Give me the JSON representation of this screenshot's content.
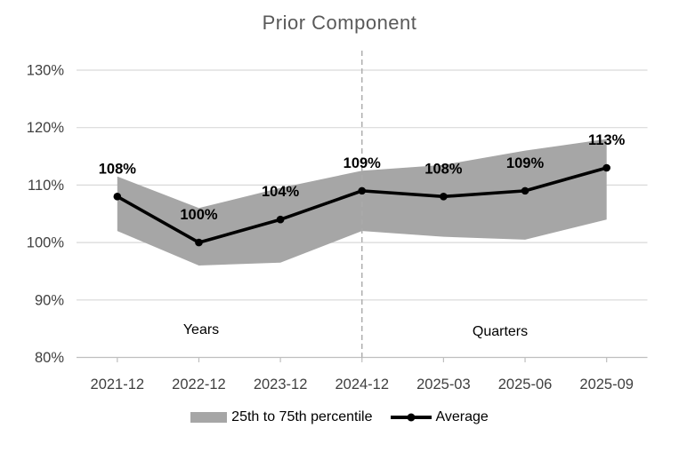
{
  "chart_data": {
    "type": "line",
    "title": "Prior Component",
    "categories": [
      "2021-12",
      "2022-12",
      "2023-12",
      "2024-12",
      "2025-03",
      "2025-06",
      "2025-09"
    ],
    "series": [
      {
        "name": "Average",
        "kind": "line",
        "values": [
          108,
          100,
          104,
          109,
          108,
          109,
          113
        ],
        "labels": [
          "108%",
          "100%",
          "104%",
          "109%",
          "108%",
          "109%",
          "113%"
        ]
      },
      {
        "name": "25th to 75th percentile",
        "kind": "band",
        "upper": [
          111.5,
          106,
          109.5,
          112.5,
          113.5,
          116,
          118
        ],
        "lower": [
          102,
          96,
          96.5,
          102,
          101,
          100.5,
          104
        ]
      }
    ],
    "axis": {
      "y_ticks": [
        130,
        120,
        110,
        100,
        90,
        80
      ],
      "y_tick_labels": [
        "130%",
        "120%",
        "110%",
        "100%",
        "90%",
        "80%"
      ],
      "y_min": 80,
      "y_max": 130,
      "grid": true
    },
    "divider": {
      "at_category": "2024-12",
      "style": "dashed"
    },
    "annotations": [
      {
        "text": "Years",
        "section": "left"
      },
      {
        "text": "Quarters",
        "section": "right"
      }
    ],
    "legend": {
      "position": "bottom",
      "items": [
        {
          "label": "25th to 75th percentile",
          "swatch": "band"
        },
        {
          "label": "Average",
          "swatch": "line-marker"
        }
      ]
    },
    "colors": {
      "band": "#a6a6a6",
      "line": "#000000",
      "gridline": "#d9d9d9",
      "axis_line": "#bfbfbf",
      "axis_text": "#404040",
      "title": "#595959",
      "divider": "#ababab",
      "label_text": "#000000"
    }
  }
}
